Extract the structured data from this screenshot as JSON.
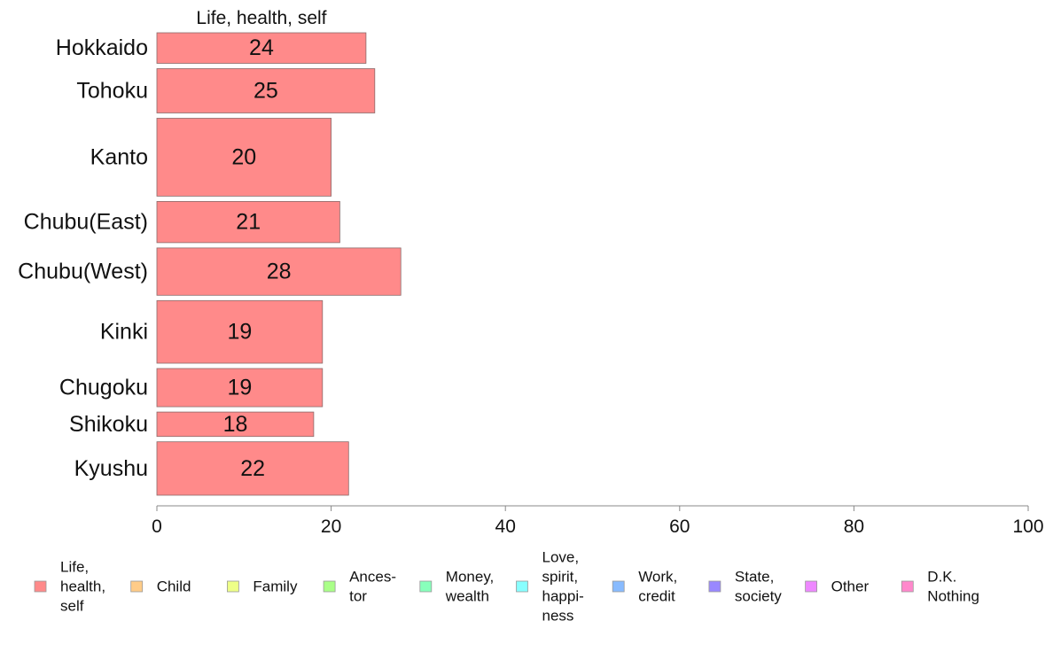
{
  "chart_data": {
    "type": "bar",
    "orientation": "horizontal",
    "panel_title": "Life, health, self",
    "categories": [
      "Hokkaido",
      "Tohoku",
      "Kanto",
      "Chubu(East)",
      "Chubu(West)",
      "Kinki",
      "Chugoku",
      "Shikoku",
      "Kyushu"
    ],
    "series": [
      {
        "name": "Life, health, self",
        "values": [
          24,
          25,
          20,
          21,
          28,
          19,
          19,
          18,
          22
        ],
        "data_labels": [
          "24",
          "25",
          "20",
          "21",
          "28",
          "19",
          "19",
          "18",
          "22"
        ],
        "color": "#ff8a8a"
      }
    ],
    "category_weights": [
      1.0,
      1.45,
      2.55,
      1.35,
      1.55,
      2.05,
      1.25,
      0.8,
      1.75
    ],
    "xlim": [
      0,
      100
    ],
    "xticks": [
      0,
      20,
      40,
      60,
      80,
      100
    ],
    "xtick_labels": [
      "0",
      "20",
      "40",
      "60",
      "80",
      "100"
    ],
    "grid": false,
    "legend": {
      "placement": "bottom",
      "items": [
        {
          "label_lines": [
            "Life,",
            "health,",
            "self"
          ],
          "color": "#ff8a8a"
        },
        {
          "label_lines": [
            "Child"
          ],
          "color": "#ffcc88"
        },
        {
          "label_lines": [
            "Family"
          ],
          "color": "#eeff88"
        },
        {
          "label_lines": [
            "Ances-",
            "tor"
          ],
          "color": "#aaff88"
        },
        {
          "label_lines": [
            "Money,",
            "wealth"
          ],
          "color": "#88ffbb"
        },
        {
          "label_lines": [
            "Love,",
            "spirit,",
            "happi-",
            "ness"
          ],
          "color": "#88ffff"
        },
        {
          "label_lines": [
            "Work,",
            "credit"
          ],
          "color": "#88bbff"
        },
        {
          "label_lines": [
            "State,",
            "society"
          ],
          "color": "#9988ff"
        },
        {
          "label_lines": [
            "Other"
          ],
          "color": "#ee88ff"
        },
        {
          "label_lines": [
            "D.K.",
            "Nothing"
          ],
          "color": "#ff88cc"
        }
      ]
    }
  }
}
